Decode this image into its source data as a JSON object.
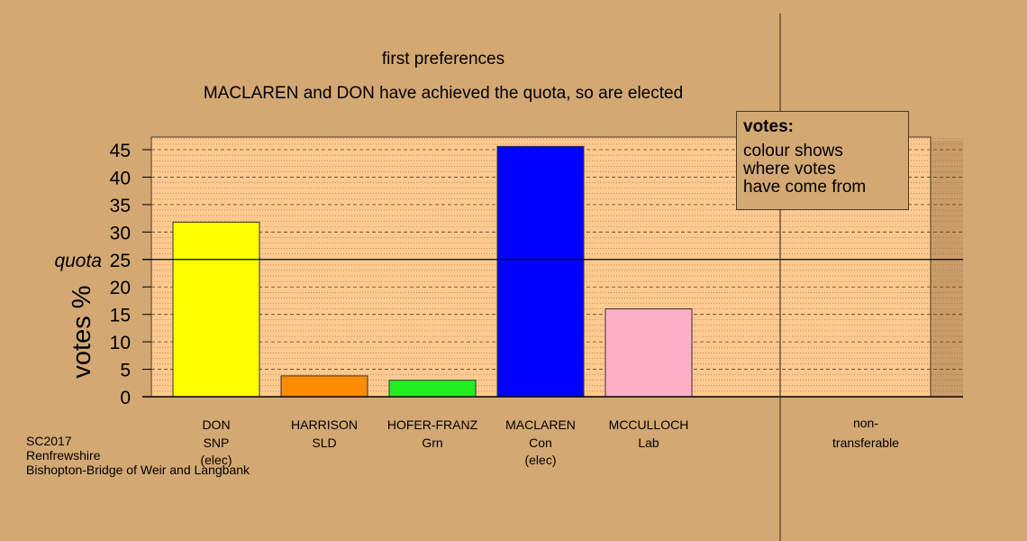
{
  "titles": {
    "line1": "first preferences",
    "line2": "MACLAREN and DON have achieved the quota, so are elected"
  },
  "legend": {
    "title": "votes:",
    "text": "colour shows\nwhere votes\nhave come from"
  },
  "footer": {
    "line1": "SC2017",
    "line2": "Renfrewshire",
    "line3": "Bishopton-Bridge of Weir and Langbank"
  },
  "chart_data": {
    "type": "bar",
    "ylabel": "votes %",
    "ylim": [
      0,
      47.5
    ],
    "yticks": [
      0,
      5,
      10,
      15,
      20,
      25,
      30,
      35,
      40,
      45
    ],
    "quota": 25,
    "quota_label": "quota",
    "categories": [
      {
        "name": "DON",
        "party": "SNP",
        "status": "(elec)",
        "value": 31.8,
        "color": "#ffff00"
      },
      {
        "name": "HARRISON",
        "party": "SLD",
        "status": "",
        "value": 3.8,
        "color": "#ff8c00"
      },
      {
        "name": "HOFER-FRANZ",
        "party": "Grn",
        "status": "",
        "value": 3.0,
        "color": "#22ee22"
      },
      {
        "name": "MACLAREN",
        "party": "Con",
        "status": "(elec)",
        "value": 45.6,
        "color": "#0000ff"
      },
      {
        "name": "MCCULLOCH",
        "party": "Lab",
        "status": "",
        "value": 16.0,
        "color": "#ffb0c8"
      }
    ],
    "nontransferable": {
      "label1": "non-",
      "label2": "transferable",
      "value": 0
    },
    "colors": {
      "background": "#d4a873",
      "plot_area": "#fec98f",
      "grid": "#8a6a40"
    }
  }
}
